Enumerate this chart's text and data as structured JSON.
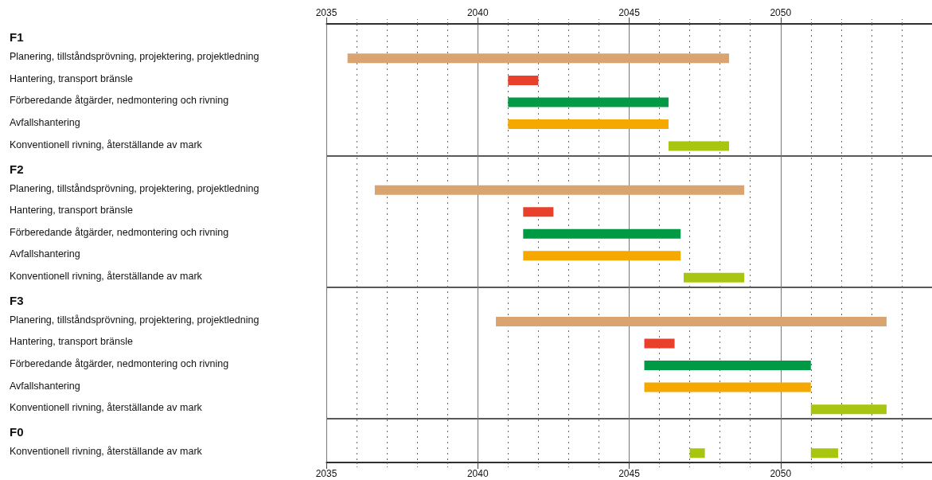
{
  "chart_data": {
    "type": "bar",
    "orientation": "horizontal",
    "categories": [
      "F1",
      "Planering, tillståndsprövning, projektering, projektledning",
      "Hantering, transport bränsle",
      "Förberedande åtgärder, nedmontering och rivning",
      "Avfallshantering",
      "Konventionell rivning, återställande av mark",
      "F2",
      "Planering, tillståndsprövning, projektering, projektledning",
      "Hantering, transport bränsle",
      "Förberedande åtgärder, nedmontering och rivning",
      "Avfallshantering",
      "Konventionell rivning, återställande av mark",
      "F3",
      "Planering, tillståndsprövning, projektering, projektledning",
      "Hantering, transport bränsle",
      "Förberedande åtgärder, nedmontering och rivning",
      "Avfallshantering",
      "Konventionell rivning, återställande av mark",
      "F0",
      "Konventionell rivning, återställande av mark"
    ],
    "series": [
      {
        "color": "#d9a470",
        "values": [
          null,
          12.6,
          null,
          null,
          null,
          null,
          null,
          12.2,
          null,
          null,
          null,
          null,
          null,
          12.9,
          null,
          null,
          null,
          null,
          null,
          null
        ],
        "base": [
          null,
          2035.7,
          null,
          null,
          null,
          null,
          null,
          2036.6,
          null,
          null,
          null,
          null,
          null,
          2040.6,
          null,
          null,
          null,
          null,
          null,
          null
        ]
      },
      {
        "color": "#e8402a",
        "values": [
          null,
          null,
          1.0,
          null,
          null,
          null,
          null,
          null,
          1.0,
          null,
          null,
          null,
          null,
          null,
          1.0,
          null,
          null,
          null,
          null,
          null
        ],
        "base": [
          null,
          null,
          2041.0,
          null,
          null,
          null,
          null,
          null,
          2041.5,
          null,
          null,
          null,
          null,
          null,
          2045.5,
          null,
          null,
          null,
          null,
          null
        ]
      },
      {
        "color": "#009a44",
        "values": [
          null,
          null,
          null,
          5.3,
          null,
          null,
          null,
          null,
          null,
          5.2,
          null,
          null,
          null,
          null,
          null,
          5.5,
          null,
          null,
          null,
          null
        ],
        "base": [
          null,
          null,
          null,
          2041.0,
          null,
          null,
          null,
          null,
          null,
          2041.5,
          null,
          null,
          null,
          null,
          null,
          2045.5,
          null,
          null,
          null,
          null
        ]
      },
      {
        "color": "#f5a800",
        "values": [
          null,
          null,
          null,
          null,
          5.3,
          null,
          null,
          null,
          null,
          null,
          5.2,
          null,
          null,
          null,
          null,
          null,
          5.5,
          null,
          null,
          null
        ],
        "base": [
          null,
          null,
          null,
          null,
          2041.0,
          null,
          null,
          null,
          null,
          null,
          2041.5,
          null,
          null,
          null,
          null,
          null,
          2045.5,
          null,
          null,
          null
        ]
      },
      {
        "color": "#a8c60f",
        "values": [
          null,
          null,
          null,
          null,
          null,
          2.0,
          null,
          null,
          null,
          null,
          null,
          2.0,
          null,
          null,
          null,
          null,
          null,
          2.5,
          null,
          0.5
        ],
        "base": [
          null,
          null,
          null,
          null,
          null,
          2046.3,
          null,
          null,
          null,
          null,
          null,
          2046.8,
          null,
          null,
          null,
          null,
          null,
          2051.0,
          null,
          2047.0
        ]
      },
      {
        "color": "#a8c60f",
        "values": [
          null,
          null,
          null,
          null,
          null,
          null,
          null,
          null,
          null,
          null,
          null,
          null,
          null,
          null,
          null,
          null,
          null,
          null,
          null,
          0.9
        ],
        "base": [
          null,
          null,
          null,
          null,
          null,
          null,
          null,
          null,
          null,
          null,
          null,
          null,
          null,
          null,
          null,
          null,
          null,
          null,
          null,
          2051.0
        ]
      }
    ],
    "xlim": [
      2035,
      2055
    ],
    "xticks": [
      2035,
      {
        "value": 2036,
        "label": null
      },
      {
        "value": 2037,
        "label": null
      },
      {
        "value": 2038,
        "label": null
      },
      {
        "value": 2039,
        "label": null
      },
      2040,
      {
        "value": 2041,
        "label": null
      },
      {
        "value": 2042,
        "label": null
      },
      {
        "value": 2043,
        "label": null
      },
      {
        "value": 2044,
        "label": null
      },
      2045,
      {
        "value": 2046,
        "label": null
      },
      {
        "value": 2047,
        "label": null
      },
      {
        "value": 2048,
        "label": null
      },
      {
        "value": 2049,
        "label": null
      },
      2050,
      {
        "value": 2051,
        "label": null
      },
      {
        "value": 2052,
        "label": null
      },
      {
        "value": 2053,
        "label": null
      },
      {
        "value": 2054,
        "label": null
      }
    ],
    "x2lim": [
      2035,
      2055
    ],
    "x2ticks": [
      2035,
      {
        "value": 2036,
        "label": null
      },
      {
        "value": 2037,
        "label": null
      },
      {
        "value": 2038,
        "label": null
      },
      {
        "value": 2039,
        "label": null
      },
      2040,
      {
        "value": 2041,
        "label": null
      },
      {
        "value": 2042,
        "label": null
      },
      {
        "value": 2043,
        "label": null
      },
      {
        "value": 2044,
        "label": null
      },
      2045,
      {
        "value": 2046,
        "label": null
      },
      {
        "value": 2047,
        "label": null
      },
      {
        "value": 2048,
        "label": null
      },
      {
        "value": 2049,
        "label": null
      },
      2050,
      {
        "value": 2051,
        "label": null
      },
      {
        "value": 2052,
        "label": null
      },
      {
        "value": 2053,
        "label": null
      },
      {
        "value": 2054,
        "label": null
      }
    ],
    "grid": "x"
  }
}
